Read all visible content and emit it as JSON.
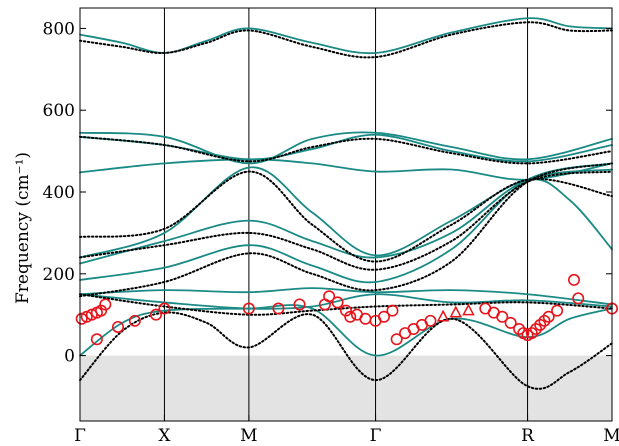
{
  "chart_data": {
    "type": "line",
    "title": "",
    "xlabel": "",
    "ylabel": "Frequency (cm⁻¹)",
    "ylim": [
      -160,
      850
    ],
    "y_ticks": [
      0,
      200,
      400,
      600,
      800
    ],
    "x_tick_labels": [
      "Γ",
      "X",
      "M",
      "Γ",
      "R",
      "M"
    ],
    "x_tick_positions": [
      0,
      1,
      2,
      3.5,
      5.3,
      6.3
    ],
    "xlim": [
      0,
      6.3
    ],
    "grid": false,
    "legend": "none",
    "imaginary_region": [
      -160,
      0
    ],
    "colors": {
      "solid": "#1a8a85",
      "dotted": "#000000",
      "circle": "#e8141b",
      "triangle": "#e8141b",
      "shade": "#e3e3e3"
    },
    "series": [
      {
        "style": "solid",
        "x": [
          0,
          0.5,
          1,
          1.5,
          2,
          2.75,
          3.5,
          4.4,
          5.3,
          5.8,
          6.3
        ],
        "y": [
          785,
          765,
          740,
          770,
          800,
          765,
          740,
          790,
          825,
          805,
          800
        ]
      },
      {
        "style": "solid",
        "x": [
          0,
          1,
          2,
          2.75,
          3.5,
          4.4,
          5.3,
          6.3
        ],
        "y": [
          545,
          535,
          470,
          530,
          545,
          510,
          480,
          530
        ]
      },
      {
        "style": "solid",
        "x": [
          0,
          1,
          2,
          2.75,
          3.5,
          4.4,
          5.3,
          6.3
        ],
        "y": [
          535,
          515,
          480,
          505,
          540,
          500,
          475,
          515
        ]
      },
      {
        "style": "solid",
        "x": [
          0,
          1,
          2,
          2.75,
          3.5,
          4.4,
          5.3,
          6.3
        ],
        "y": [
          448,
          470,
          480,
          470,
          450,
          455,
          430,
          470
        ]
      },
      {
        "style": "solid",
        "x": [
          0,
          1,
          2,
          2.75,
          3.5,
          4.4,
          5.3,
          5.8,
          6.3
        ],
        "y": [
          240,
          300,
          460,
          350,
          245,
          330,
          430,
          380,
          260
        ]
      },
      {
        "style": "solid",
        "x": [
          0,
          1,
          2,
          2.75,
          3.5,
          4.4,
          5.3,
          6.3
        ],
        "y": [
          225,
          280,
          330,
          280,
          240,
          300,
          430,
          455
        ]
      },
      {
        "style": "solid",
        "x": [
          0,
          1,
          2,
          2.75,
          3.5,
          4.4,
          5.3,
          6.3
        ],
        "y": [
          185,
          215,
          270,
          220,
          180,
          260,
          430,
          470
        ]
      },
      {
        "style": "solid",
        "x": [
          0,
          1,
          2,
          2.75,
          3.5,
          4.4,
          5.3,
          6.3
        ],
        "y": [
          150,
          160,
          155,
          165,
          155,
          160,
          150,
          125
        ]
      },
      {
        "style": "solid",
        "x": [
          0,
          1,
          2,
          2.75,
          3.5,
          4.4,
          5.3,
          6.3
        ],
        "y": [
          150,
          130,
          115,
          120,
          150,
          130,
          135,
          120
        ]
      },
      {
        "style": "solid",
        "x": [
          0,
          0.5,
          1,
          2,
          2.75,
          3.5,
          4.4,
          5.3,
          5.8,
          6.3
        ],
        "y": [
          0,
          80,
          110,
          115,
          115,
          0,
          90,
          45,
          90,
          115
        ]
      },
      {
        "style": "dotted",
        "x": [
          0,
          0.5,
          1,
          1.5,
          2,
          2.75,
          3.5,
          4.4,
          5.3,
          5.8,
          6.3
        ],
        "y": [
          770,
          755,
          740,
          765,
          795,
          755,
          730,
          785,
          815,
          795,
          795
        ]
      },
      {
        "style": "dotted",
        "x": [
          0,
          1,
          2,
          2.75,
          3.5,
          4.4,
          5.3,
          6.3
        ],
        "y": [
          535,
          515,
          475,
          510,
          530,
          495,
          470,
          500
        ]
      },
      {
        "style": "dotted",
        "x": [
          0,
          1,
          2,
          2.75,
          3.5,
          4.4,
          5.3,
          6.3
        ],
        "y": [
          290,
          310,
          450,
          320,
          230,
          320,
          430,
          390
        ]
      },
      {
        "style": "dotted",
        "x": [
          0,
          1,
          2,
          2.75,
          3.5,
          4.4,
          5.3,
          6.3
        ],
        "y": [
          240,
          270,
          300,
          260,
          210,
          280,
          425,
          450
        ]
      },
      {
        "style": "dotted",
        "x": [
          0,
          1,
          2,
          2.75,
          3.5,
          4.4,
          5.3,
          6.3
        ],
        "y": [
          145,
          180,
          250,
          200,
          160,
          230,
          425,
          470
        ]
      },
      {
        "style": "dotted",
        "x": [
          0,
          1,
          2,
          2.75,
          3.5,
          4.4,
          5.3,
          6.3
        ],
        "y": [
          150,
          120,
          100,
          110,
          120,
          125,
          130,
          115
        ]
      },
      {
        "style": "dotted",
        "x": [
          0,
          0.5,
          1,
          1.5,
          2,
          2.75,
          3.5,
          4.4,
          5.3,
          5.8,
          6.3
        ],
        "y": [
          -60,
          60,
          105,
          80,
          20,
          100,
          -60,
          90,
          -75,
          -40,
          30
        ]
      }
    ],
    "circles": {
      "x": [
        0.02,
        0.08,
        0.14,
        0.2,
        0.25,
        0.3,
        0.2,
        0.45,
        0.65,
        0.9,
        1.0,
        2.0,
        2.35,
        2.6,
        2.9,
        2.95,
        3.05,
        3.15,
        3.2,
        3.28,
        3.38,
        3.5,
        3.6,
        3.7,
        3.75,
        3.85,
        3.95,
        4.05,
        4.15,
        4.8,
        4.9,
        5.0,
        5.1,
        5.2,
        5.25,
        5.3,
        5.35,
        5.4,
        5.45,
        5.5,
        5.55,
        5.65,
        5.85,
        5.9,
        6.3
      ],
      "y": [
        90,
        95,
        100,
        105,
        110,
        125,
        40,
        70,
        85,
        100,
        115,
        115,
        115,
        125,
        125,
        145,
        130,
        110,
        95,
        100,
        90,
        85,
        95,
        110,
        40,
        55,
        65,
        75,
        85,
        115,
        105,
        95,
        80,
        65,
        55,
        50,
        55,
        65,
        75,
        85,
        95,
        110,
        185,
        140,
        115
      ]
    },
    "triangles": {
      "x": [
        4.3,
        4.45,
        4.6
      ],
      "y": [
        95,
        105,
        110
      ]
    }
  }
}
